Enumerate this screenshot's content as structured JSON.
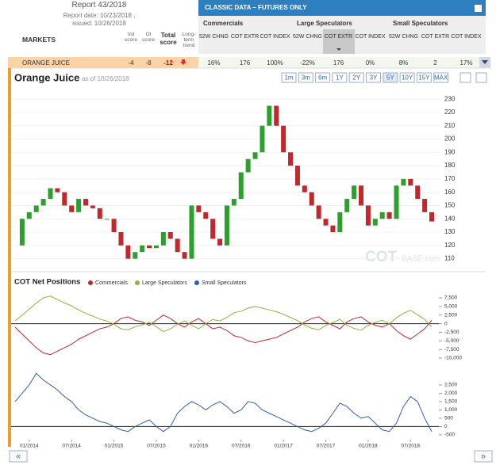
{
  "header": {
    "report": "Report 43/2018",
    "report_date": "Report date: 10/23/2018 ,",
    "issued": "issued: 10/26/2018",
    "markets": "MARKETS",
    "score_columns": [
      "Vol score",
      "OI score",
      "Total score",
      "Long-term trend"
    ],
    "classic": "CLASSIC DATA – FUTURES ONLY",
    "groups": [
      {
        "name": "Commercials",
        "columns": [
          "52W CHNG",
          "COT EXTR",
          "COT INDEX"
        ]
      },
      {
        "name": "Large Speculators",
        "columns": [
          "52W CHNG",
          "COT EXTR",
          "COT INDEX"
        ]
      },
      {
        "name": "Small Speculators",
        "columns": [
          "52W CHNG",
          "COT EXTR",
          "COT INDEX"
        ]
      }
    ]
  },
  "row": {
    "market": "ORANGE JUICE",
    "scores": [
      "-4",
      "-8",
      "-12"
    ],
    "cells": [
      "16%",
      "176",
      "100%",
      "-22%",
      "176",
      "0%",
      "8%",
      "2",
      "17%"
    ]
  },
  "price_chart": {
    "title": "Orange Juice",
    "as_of": "as of 10/26/2018",
    "ranges": [
      "1m",
      "3m",
      "6m",
      "1Y",
      "2Y",
      "3Y",
      "5Y",
      "10Y",
      "15Y",
      "MAX"
    ],
    "active_range": "5Y",
    "watermark": [
      "COT",
      "BASE.com"
    ],
    "ylim": [
      105,
      242
    ],
    "yticks": [
      110,
      120,
      130,
      140,
      150,
      160,
      170,
      180,
      190,
      200,
      210,
      220,
      230
    ],
    "up_color": "#2ca02c",
    "down_color": "#c0282d",
    "values": [
      120,
      140,
      145,
      150,
      155,
      163,
      160,
      150,
      145,
      155,
      150,
      148,
      140,
      140,
      130,
      120,
      110,
      115,
      120,
      118,
      120,
      130,
      125,
      115,
      110,
      150,
      145,
      140,
      125,
      120,
      150,
      155,
      175,
      185,
      190,
      210,
      225,
      210,
      190,
      180,
      165,
      160,
      150,
      140,
      135,
      130,
      145,
      155,
      165,
      150,
      135,
      140,
      145,
      140,
      165,
      170,
      165,
      155,
      145,
      138
    ]
  },
  "cot_chart": {
    "title": "COT Net Positions",
    "xlim": [
      0,
      59
    ],
    "xticks": [
      {
        "value": 2,
        "label": "01/2014"
      },
      {
        "value": 8,
        "label": "07/2014"
      },
      {
        "value": 14,
        "label": "01/2015"
      },
      {
        "value": 20,
        "label": "07/2015"
      },
      {
        "value": 26,
        "label": "01/2016"
      },
      {
        "value": 32,
        "label": "07/2016"
      },
      {
        "value": 38,
        "label": "01/2017"
      },
      {
        "value": 44,
        "label": "07/2017"
      },
      {
        "value": 50,
        "label": "01/2018"
      },
      {
        "value": 56,
        "label": "07/2018"
      }
    ],
    "ylim": [
      -11380,
      8880
    ],
    "yticks": [
      {
        "value": 7500,
        "label": "7,500"
      },
      {
        "value": 5000,
        "label": "5,000"
      },
      {
        "value": 2500,
        "label": "2,500"
      },
      0,
      {
        "value": -2500,
        "label": "-2,500"
      },
      {
        "value": -5000,
        "label": "-5,000"
      },
      {
        "value": -7500,
        "label": "-7,500"
      },
      {
        "value": -10000,
        "label": "-10,000"
      }
    ],
    "y2lim": [
      -790,
      3450
    ],
    "y2ticks": [
      {
        "value": 2500,
        "label": "2,500"
      },
      {
        "value": 2000,
        "label": "2,000"
      },
      {
        "value": 1500,
        "label": "1,500"
      },
      {
        "value": 1000,
        "label": "1,000"
      },
      500,
      0,
      -500
    ],
    "series": [
      {
        "name": "Commercials",
        "color": "#c0282d",
        "values": [
          -1000,
          -3000,
          -5000,
          -7000,
          -8500,
          -9000,
          -8000,
          -7000,
          -6000,
          -4500,
          -3500,
          -2500,
          -1500,
          -1000,
          0,
          1500,
          2000,
          1000,
          500,
          -500,
          1000,
          2500,
          1500,
          0,
          -1000,
          500,
          1500,
          0,
          -1500,
          -1000,
          -2000,
          -3500,
          -4000,
          -5000,
          -5500,
          -5000,
          -4500,
          -4000,
          -3000,
          -2000,
          -1000,
          500,
          1500,
          2000,
          500,
          -500,
          -1500,
          500,
          1500,
          2000,
          500,
          -500,
          -1000,
          0,
          -2000,
          -3500,
          -4500,
          -3000,
          -1500,
          1000
        ]
      },
      {
        "name": "Large Speculators",
        "color": "#8db33a",
        "values": [
          800,
          2500,
          4200,
          6000,
          7500,
          8000,
          7000,
          6000,
          5200,
          4000,
          3000,
          2200,
          1300,
          800,
          -200,
          -1500,
          -1800,
          -900,
          -400,
          400,
          -900,
          -2300,
          -1500,
          -200,
          800,
          -500,
          -1500,
          0,
          1200,
          800,
          1800,
          3200,
          3600,
          4500,
          5000,
          4500,
          4000,
          3500,
          2700,
          1800,
          900,
          -400,
          -1300,
          -1800,
          -500,
          300,
          1300,
          -500,
          -1400,
          -1900,
          -500,
          400,
          1000,
          0,
          1700,
          3000,
          3900,
          2600,
          1200,
          -1000
        ]
      },
      {
        "name": "Small Speculators",
        "color": "#2f5fa8",
        "axis": "y2",
        "values": [
          1500,
          2000,
          2500,
          3200,
          2800,
          2500,
          2200,
          1800,
          1500,
          1000,
          700,
          500,
          300,
          200,
          0,
          -200,
          -300,
          0,
          200,
          400,
          0,
          -300,
          0,
          800,
          1200,
          1500,
          1300,
          1000,
          1300,
          1500,
          1200,
          800,
          1000,
          1500,
          1400,
          1000,
          800,
          600,
          400,
          200,
          0,
          -200,
          -300,
          -100,
          200,
          800,
          1400,
          1200,
          800,
          500,
          600,
          200,
          -200,
          -300,
          200,
          1200,
          1800,
          1500,
          500,
          -300
        ]
      }
    ]
  },
  "nav": {
    "prev": "«",
    "next": "»"
  }
}
